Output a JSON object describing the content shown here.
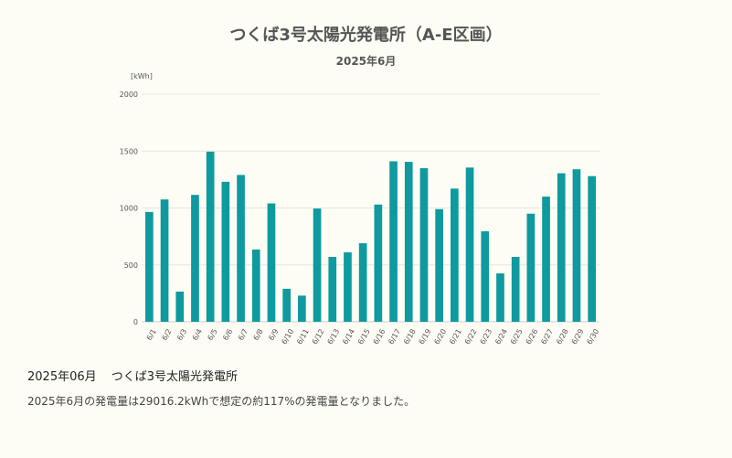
{
  "chart_data": {
    "type": "bar",
    "title": "つくば3号太陽光発電所（A-E区画）",
    "subtitle": "2025年6月",
    "ylabel": "[kWh]",
    "xlabel": "",
    "ylim": [
      0,
      2000
    ],
    "yticks": [
      0,
      500,
      1000,
      1500,
      2000
    ],
    "grid": true,
    "bar_color": "#0e9a9e",
    "categories": [
      "6/1",
      "6/2",
      "6/3",
      "6/4",
      "6/5",
      "6/6",
      "6/7",
      "6/8",
      "6/9",
      "6/10",
      "6/11",
      "6/12",
      "6/13",
      "6/14",
      "6/15",
      "6/16",
      "6/17",
      "6/18",
      "6/19",
      "6/20",
      "6/21",
      "6/22",
      "6/23",
      "6/24",
      "6/25",
      "6/26",
      "6/27",
      "6/28",
      "6/29",
      "6/30"
    ],
    "values": [
      965,
      1075,
      265,
      1115,
      1495,
      1230,
      1290,
      635,
      1040,
      290,
      230,
      995,
      570,
      610,
      690,
      1030,
      1410,
      1405,
      1350,
      990,
      1170,
      1355,
      795,
      425,
      570,
      950,
      1100,
      1305,
      1340,
      1280
    ]
  },
  "summary": {
    "heading_date": "2025年06月",
    "heading_site": "つくば3号太陽光発電所",
    "text": "2025年6月の発電量は29016.2kWhで想定の約117%の発電量となりました。"
  }
}
